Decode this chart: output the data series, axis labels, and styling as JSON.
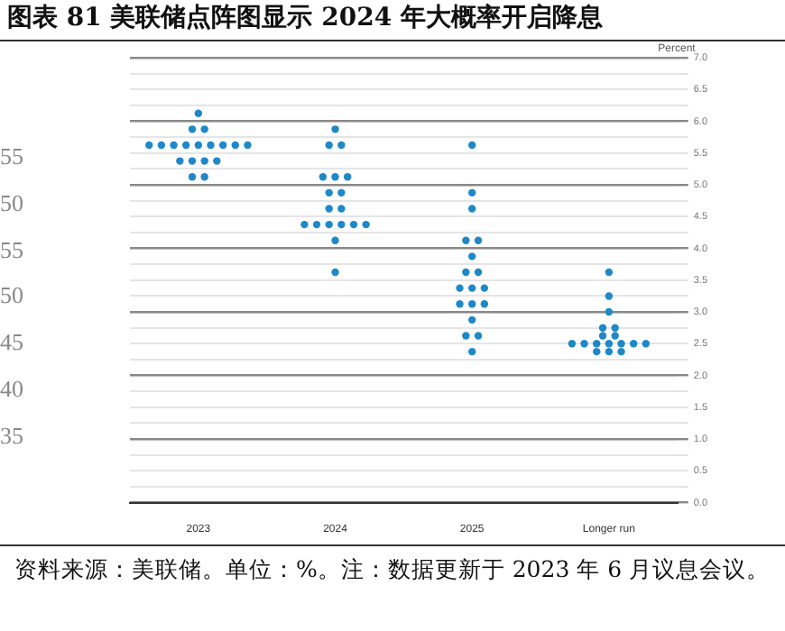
{
  "chart_data": {
    "type": "scatter",
    "title": "图表 81  美联储点阵图显示 2024 年大概率开启降息",
    "ylabel": "Percent",
    "categories": [
      "2023",
      "2024",
      "2025",
      "Longer run"
    ],
    "series": [
      {
        "color": "#1e88c8",
        "values": [
          6.125,
          5.875,
          5.625,
          3.625
        ]
      },
      {
        "color": "#1e88c8",
        "values": [
          5.875,
          5.625,
          4.875,
          3.25
        ]
      },
      {
        "color": "#1e88c8",
        "values": [
          5.875,
          5.625,
          4.625,
          3.0
        ]
      },
      {
        "color": "#1e88c8",
        "values": [
          5.625,
          5.125,
          4.125,
          2.75
        ]
      },
      {
        "color": "#1e88c8",
        "values": [
          5.625,
          5.125,
          4.125,
          2.75
        ]
      },
      {
        "color": "#1e88c8",
        "values": [
          5.625,
          5.125,
          3.875,
          2.625
        ]
      },
      {
        "color": "#1e88c8",
        "values": [
          5.625,
          4.875,
          3.625,
          2.625
        ]
      },
      {
        "color": "#1e88c8",
        "values": [
          5.625,
          4.875,
          3.625,
          2.5
        ]
      },
      {
        "color": "#1e88c8",
        "values": [
          5.625,
          4.625,
          3.375,
          2.5
        ]
      },
      {
        "color": "#1e88c8",
        "values": [
          5.625,
          4.625,
          3.375,
          2.5
        ]
      },
      {
        "color": "#1e88c8",
        "values": [
          5.625,
          4.375,
          3.375,
          2.5
        ]
      },
      {
        "color": "#1e88c8",
        "values": [
          5.625,
          4.375,
          3.125,
          2.5
        ]
      },
      {
        "color": "#1e88c8",
        "values": [
          5.375,
          4.375,
          3.125,
          2.5
        ]
      },
      {
        "color": "#1e88c8",
        "values": [
          5.375,
          4.375,
          3.125,
          2.5
        ]
      },
      {
        "color": "#1e88c8",
        "values": [
          5.375,
          4.375,
          2.875,
          2.375
        ]
      },
      {
        "color": "#1e88c8",
        "values": [
          5.375,
          4.375,
          2.625,
          2.375
        ]
      },
      {
        "color": "#1e88c8",
        "values": [
          5.125,
          4.125,
          2.625,
          2.375
        ]
      },
      {
        "color": "#1e88c8",
        "values": [
          5.125,
          3.625,
          2.375,
          null
        ]
      }
    ],
    "ylim": [
      0,
      7
    ],
    "yticks": [
      {
        "value": 0,
        "label": "0.0"
      },
      {
        "value": 0.25,
        "label": null
      },
      {
        "value": 0.5,
        "label": "0.5"
      },
      {
        "value": 0.75,
        "label": null
      },
      {
        "value": 1,
        "label": "1.0"
      },
      {
        "value": 1.25,
        "label": null
      },
      {
        "value": 1.5,
        "label": "1.5"
      },
      {
        "value": 1.75,
        "label": null
      },
      {
        "value": 2,
        "label": "2.0"
      },
      {
        "value": 2.25,
        "label": null
      },
      {
        "value": 2.5,
        "label": "2.5"
      },
      {
        "value": 2.75,
        "label": null
      },
      {
        "value": 3,
        "label": "3.0"
      },
      {
        "value": 3.25,
        "label": null
      },
      {
        "value": 3.5,
        "label": "3.5"
      },
      {
        "value": 3.75,
        "label": null
      },
      {
        "value": 4,
        "label": "4.0"
      },
      {
        "value": 4.25,
        "label": null
      },
      {
        "value": 4.5,
        "label": "4.5"
      },
      {
        "value": 4.75,
        "label": null
      },
      {
        "value": 5,
        "label": "5.0"
      },
      {
        "value": 5.25,
        "label": null
      },
      {
        "value": 5.5,
        "label": "5.5"
      },
      {
        "value": 5.75,
        "label": null
      },
      {
        "value": 6,
        "label": "6.0"
      },
      {
        "value": 6.25,
        "label": null
      },
      {
        "value": 6.5,
        "label": "6.5"
      },
      {
        "value": 6.75,
        "label": null
      },
      {
        "value": 7,
        "label": "7.0"
      }
    ],
    "grid": true,
    "legend": false,
    "marker": "circle",
    "annotations": [
      "55",
      "50",
      "55",
      "50",
      "45",
      "40",
      "35",
      "资料来源：美联储。单位：%。注：数据更新于 2023 年 6 月议息会议。"
    ]
  }
}
